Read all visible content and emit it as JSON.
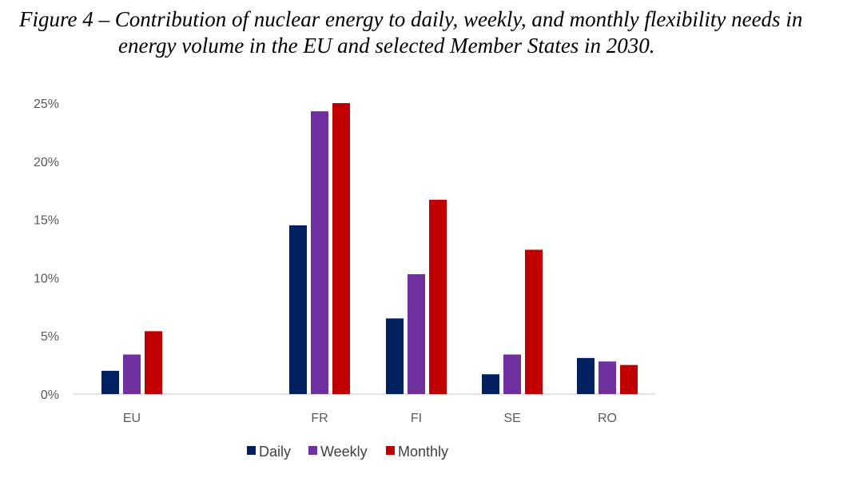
{
  "caption": {
    "line1": "Figure 4 – Contribution of nuclear energy to daily, weekly, and monthly flexibility needs in",
    "line2": "energy volume in the EU and selected Member States in 2030."
  },
  "chart_data": {
    "type": "bar",
    "title": "Figure 4 – Contribution of nuclear energy to daily, weekly, and monthly flexibility needs in energy volume in the EU and selected Member States in 2030.",
    "categories": [
      "EU",
      "FR",
      "FI",
      "SE",
      "RO"
    ],
    "series": [
      {
        "name": "Daily",
        "color": "#002060",
        "values": [
          0.02,
          0.145,
          0.065,
          0.017,
          0.031
        ]
      },
      {
        "name": "Weekly",
        "color": "#7030A0",
        "values": [
          0.034,
          0.243,
          0.103,
          0.034,
          0.028
        ]
      },
      {
        "name": "Monthly",
        "color": "#C00000",
        "values": [
          0.054,
          0.25,
          0.167,
          0.124,
          0.025
        ]
      }
    ],
    "ylim": [
      0,
      0.25
    ],
    "yticks": [
      0,
      0.05,
      0.1,
      0.15,
      0.2,
      0.25
    ],
    "ytick_labels": [
      "0%",
      "5%",
      "10%",
      "15%",
      "20%",
      "25%"
    ],
    "xlabel": "",
    "ylabel": "",
    "grid": false,
    "legend_position": "bottom"
  }
}
